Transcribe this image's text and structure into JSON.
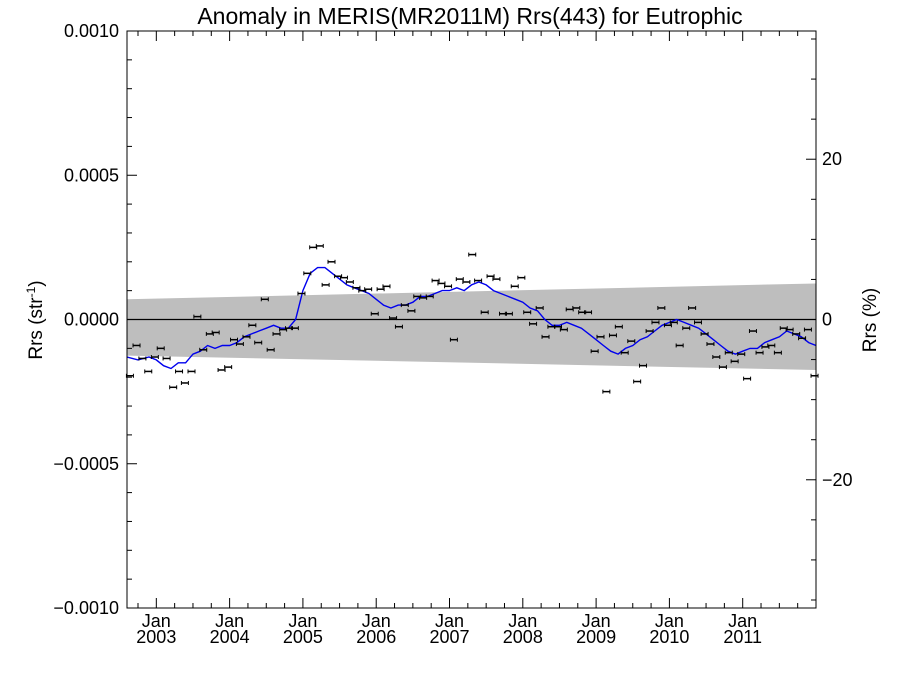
{
  "chart_data": {
    "type": "scatter",
    "title": "Anomaly in MERIS(MR2011M) Rrs(443) for Eutrophic",
    "ylabel": "Rrs (str",
    "ylabel_sup": "-1",
    "ylabel_close": ")",
    "y2label": "Rrs (%)",
    "x_range": [
      2002.6,
      2012.0
    ],
    "ylim": [
      -0.001,
      0.001
    ],
    "y2lim": [
      -36,
      36
    ],
    "y_ticks": [
      {
        "value": 0.001,
        "label": "0.0010"
      },
      {
        "value": 0.0005,
        "label": "0.0005"
      },
      {
        "value": 0.0,
        "label": "0.0000"
      },
      {
        "value": -0.0005,
        "label": "−0.0005"
      },
      {
        "value": -0.001,
        "label": "−0.0010"
      }
    ],
    "y2_ticks": [
      {
        "value": 20,
        "label": "20"
      },
      {
        "value": 0,
        "label": "0"
      },
      {
        "value": -20,
        "label": "−20"
      }
    ],
    "x_ticks": [
      {
        "value": 2003.0,
        "month": "Jan",
        "year": "2003"
      },
      {
        "value": 2004.0,
        "month": "Jan",
        "year": "2004"
      },
      {
        "value": 2005.0,
        "month": "Jan",
        "year": "2005"
      },
      {
        "value": 2006.0,
        "month": "Jan",
        "year": "2006"
      },
      {
        "value": 2007.0,
        "month": "Jan",
        "year": "2007"
      },
      {
        "value": 2008.0,
        "month": "Jan",
        "year": "2008"
      },
      {
        "value": 2009.0,
        "month": "Jan",
        "year": "2009"
      },
      {
        "value": 2010.0,
        "month": "Jan",
        "year": "2010"
      },
      {
        "value": 2011.0,
        "month": "Jan",
        "year": "2011"
      }
    ],
    "uncertainty_band": {
      "color": "#bebebe",
      "start": {
        "x": 2002.6,
        "lower": -0.000125,
        "upper": 7e-05
      },
      "end": {
        "x": 2012.0,
        "lower": -0.000175,
        "upper": 0.000125
      }
    },
    "zero_line": 0.0,
    "monthly_anomaly": {
      "color": "#000000",
      "x": [
        2002.64,
        2002.73,
        2002.81,
        2002.89,
        2002.98,
        2003.06,
        2003.14,
        2003.23,
        2003.31,
        2003.39,
        2003.48,
        2003.56,
        2003.64,
        2003.73,
        2003.81,
        2003.89,
        2003.98,
        2004.06,
        2004.14,
        2004.23,
        2004.31,
        2004.39,
        2004.48,
        2004.56,
        2004.64,
        2004.73,
        2004.81,
        2004.89,
        2004.98,
        2005.06,
        2005.14,
        2005.23,
        2005.31,
        2005.39,
        2005.48,
        2005.56,
        2005.64,
        2005.73,
        2005.81,
        2005.89,
        2005.98,
        2006.06,
        2006.14,
        2006.23,
        2006.31,
        2006.39,
        2006.48,
        2006.56,
        2006.64,
        2006.73,
        2006.81,
        2006.89,
        2006.98,
        2007.06,
        2007.14,
        2007.23,
        2007.31,
        2007.39,
        2007.48,
        2007.56,
        2007.64,
        2007.73,
        2007.81,
        2007.89,
        2007.98,
        2008.06,
        2008.14,
        2008.23,
        2008.31,
        2008.39,
        2008.48,
        2008.56,
        2008.64,
        2008.73,
        2008.81,
        2008.89,
        2008.98,
        2009.06,
        2009.14,
        2009.23,
        2009.31,
        2009.39,
        2009.48,
        2009.56,
        2009.64,
        2009.73,
        2009.81,
        2009.89,
        2009.98,
        2010.06,
        2010.14,
        2010.23,
        2010.31,
        2010.39,
        2010.48,
        2010.56,
        2010.64,
        2010.73,
        2010.81,
        2010.89,
        2010.98,
        2011.06,
        2011.14,
        2011.23,
        2011.31,
        2011.39,
        2011.48,
        2011.56,
        2011.64,
        2011.73,
        2011.81,
        2011.89,
        2011.98
      ],
      "y": [
        -0.000195,
        -9e-05,
        -0.000135,
        -0.00018,
        -0.00013,
        -0.0001,
        -0.000135,
        -0.000235,
        -0.00018,
        -0.00022,
        -0.00018,
        1e-05,
        -0.000105,
        -5e-05,
        -4.5e-05,
        -0.000175,
        -0.000165,
        -7e-05,
        -8.5e-05,
        -6e-05,
        -2e-05,
        -8e-05,
        7e-05,
        -0.000105,
        -5e-05,
        -3.5e-05,
        -3e-05,
        -3e-05,
        9e-05,
        0.00016,
        0.00025,
        0.000255,
        0.00012,
        0.0002,
        0.00015,
        0.000145,
        0.00013,
        0.00011,
        0.0001,
        0.000105,
        2e-05,
        0.000105,
        0.000115,
        5e-06,
        -2.5e-05,
        5e-05,
        3e-05,
        8e-05,
        7.5e-05,
        8e-05,
        0.000135,
        0.000125,
        0.000115,
        -7e-05,
        0.00014,
        0.00013,
        0.000225,
        0.000135,
        2.5e-05,
        0.00015,
        0.00014,
        2e-05,
        2e-05,
        0.000115,
        0.000145,
        2.5e-05,
        -1.5e-05,
        4e-05,
        -6e-05,
        -2.5e-05,
        -2.5e-05,
        -3.5e-05,
        3.5e-05,
        4e-05,
        2.5e-05,
        2.5e-05,
        -0.00011,
        -6e-05,
        -0.00025,
        -5.5e-05,
        -2.5e-05,
        -0.000115,
        -7.5e-05,
        -0.000215,
        -0.00016,
        -4e-05,
        -1e-05,
        4e-05,
        -2e-05,
        -1e-05,
        -9e-05,
        -3e-05,
        4e-05,
        -1e-05,
        -5e-05,
        -8.5e-05,
        -0.00013,
        -0.000165,
        -0.000115,
        -0.000145,
        -0.00012,
        -0.000205,
        -4e-05,
        -0.000115,
        -9.5e-05,
        -9e-05,
        -0.000115,
        -3e-05,
        -3.5e-05,
        -5e-05,
        -6.5e-05,
        -3.5e-05,
        -0.000195
      ]
    },
    "running_mean": {
      "color": "#0000ee",
      "x": [
        2002.6,
        2002.75,
        2002.9,
        2003.0,
        2003.1,
        2003.2,
        2003.3,
        2003.4,
        2003.5,
        2003.6,
        2003.7,
        2003.8,
        2003.9,
        2004.0,
        2004.1,
        2004.2,
        2004.3,
        2004.4,
        2004.5,
        2004.6,
        2004.7,
        2004.8,
        2004.9,
        2005.0,
        2005.1,
        2005.2,
        2005.3,
        2005.4,
        2005.5,
        2005.6,
        2005.7,
        2005.8,
        2005.9,
        2006.0,
        2006.1,
        2006.2,
        2006.3,
        2006.4,
        2006.5,
        2006.6,
        2006.7,
        2006.8,
        2006.9,
        2007.0,
        2007.1,
        2007.2,
        2007.3,
        2007.4,
        2007.5,
        2007.6,
        2007.7,
        2007.8,
        2007.9,
        2008.0,
        2008.1,
        2008.2,
        2008.3,
        2008.4,
        2008.5,
        2008.6,
        2008.7,
        2008.8,
        2008.9,
        2009.0,
        2009.1,
        2009.2,
        2009.3,
        2009.4,
        2009.5,
        2009.6,
        2009.7,
        2009.8,
        2009.9,
        2010.0,
        2010.1,
        2010.2,
        2010.3,
        2010.4,
        2010.5,
        2010.6,
        2010.7,
        2010.8,
        2010.9,
        2011.0,
        2011.1,
        2011.2,
        2011.3,
        2011.4,
        2011.5,
        2011.6,
        2011.7,
        2011.8,
        2011.9,
        2012.0
      ],
      "y": [
        -0.00013,
        -0.00014,
        -0.00013,
        -0.00014,
        -0.00016,
        -0.00017,
        -0.00015,
        -0.00015,
        -0.00012,
        -0.00011,
        -9e-05,
        -0.0001,
        -9e-05,
        -9e-05,
        -8e-05,
        -6e-05,
        -5e-05,
        -4e-05,
        -3e-05,
        -2e-05,
        -3e-05,
        -3e-05,
        0.0,
        0.0001,
        0.00016,
        0.00018,
        0.00018,
        0.00016,
        0.00014,
        0.00012,
        0.00011,
        0.0001,
        9e-05,
        7e-05,
        5e-05,
        4e-05,
        5e-05,
        5e-05,
        6e-05,
        8e-05,
        8e-05,
        9e-05,
        0.0001,
        0.0001,
        0.00011,
        0.0001,
        0.00012,
        0.00013,
        0.00012,
        0.0001,
        9e-05,
        8e-05,
        7e-05,
        6e-05,
        4e-05,
        3e-05,
        0.0,
        -2e-05,
        -2e-05,
        -1e-05,
        -2e-05,
        -3e-05,
        -5e-05,
        -7e-05,
        -9e-05,
        -0.00011,
        -0.00012,
        -0.0001,
        -9e-05,
        -7e-05,
        -6e-05,
        -4e-05,
        -2e-05,
        -1e-05,
        0.0,
        -1e-05,
        -2e-05,
        -3e-05,
        -5e-05,
        -7e-05,
        -9e-05,
        -0.00011,
        -0.00012,
        -0.00011,
        -0.0001,
        -0.0001,
        -8e-05,
        -7e-05,
        -6e-05,
        -4e-05,
        -5e-05,
        -6e-05,
        -8e-05,
        -9e-05
      ]
    }
  }
}
